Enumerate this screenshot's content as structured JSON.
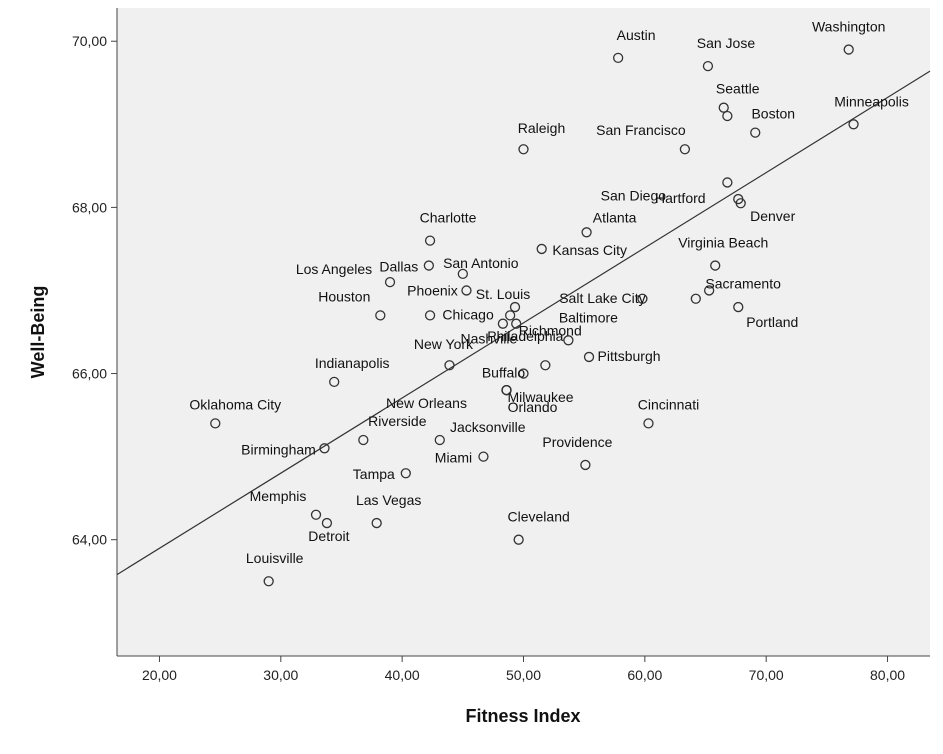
{
  "chart_data": {
    "type": "scatter",
    "xlabel": "Fitness Index",
    "ylabel": "Well-Being",
    "xlim": [
      16.5,
      83.5
    ],
    "ylim": [
      62.6,
      70.4
    ],
    "x_ticks": [
      20,
      30,
      40,
      50,
      60,
      70,
      80
    ],
    "x_tick_labels": [
      "20,00",
      "30,00",
      "40,00",
      "50,00",
      "60,00",
      "70,00",
      "80,00"
    ],
    "y_ticks": [
      64,
      66,
      68,
      70
    ],
    "y_tick_labels": [
      "64,00",
      "66,00",
      "68,00",
      "70,00"
    ],
    "fit_line": {
      "type": "linear",
      "from": [
        16.5,
        63.58
      ],
      "to": [
        83.5,
        69.64
      ]
    },
    "background_color": "#f0f0f0",
    "point_color": "#333333",
    "points": [
      {
        "label": "Washington",
        "x": 76.8,
        "y": 69.9
      },
      {
        "label": "Austin",
        "x": 57.8,
        "y": 69.8
      },
      {
        "label": "San Jose",
        "x": 65.2,
        "y": 69.7
      },
      {
        "label": "Seattle",
        "x": 66.5,
        "y": 69.2
      },
      {
        "label": "",
        "x": 66.8,
        "y": 69.1
      },
      {
        "label": "Boston",
        "x": 69.1,
        "y": 68.9
      },
      {
        "label": "Minneapolis",
        "x": 77.2,
        "y": 69.0
      },
      {
        "label": "Raleigh",
        "x": 50.0,
        "y": 68.7
      },
      {
        "label": "San Francisco",
        "x": 63.3,
        "y": 68.7
      },
      {
        "label": "San Diego",
        "x": 66.8,
        "y": 68.3
      },
      {
        "label": "Hartford",
        "x": 67.7,
        "y": 68.1
      },
      {
        "label": "Denver",
        "x": 67.9,
        "y": 68.05
      },
      {
        "label": "Atlanta",
        "x": 55.2,
        "y": 67.7
      },
      {
        "label": "Charlotte",
        "x": 42.3,
        "y": 67.6
      },
      {
        "label": "Kansas City",
        "x": 51.5,
        "y": 67.5
      },
      {
        "label": "Dallas",
        "x": 42.2,
        "y": 67.3
      },
      {
        "label": "San Antonio",
        "x": 45.0,
        "y": 67.2
      },
      {
        "label": "Virginia Beach",
        "x": 65.8,
        "y": 67.3
      },
      {
        "label": "Los Angeles",
        "x": 39.0,
        "y": 67.1
      },
      {
        "label": "Phoenix",
        "x": 45.3,
        "y": 67.0
      },
      {
        "label": "Sacramento",
        "x": 65.3,
        "y": 67.0
      },
      {
        "label": "Salt Lake City",
        "x": 59.8,
        "y": 66.9
      },
      {
        "label": "",
        "x": 64.2,
        "y": 66.9
      },
      {
        "label": "St. Louis",
        "x": 49.3,
        "y": 66.8
      },
      {
        "label": "Portland",
        "x": 67.7,
        "y": 66.8
      },
      {
        "label": "Houston",
        "x": 38.2,
        "y": 66.7
      },
      {
        "label": "Chicago",
        "x": 42.3,
        "y": 66.7
      },
      {
        "label": "",
        "x": 48.9,
        "y": 66.7
      },
      {
        "label": "Richmond",
        "x": 49.4,
        "y": 66.6
      },
      {
        "label": "Nashville",
        "x": 48.3,
        "y": 66.6
      },
      {
        "label": "Baltimore",
        "x": 53.7,
        "y": 66.4
      },
      {
        "label": "Pittsburgh",
        "x": 55.4,
        "y": 66.2
      },
      {
        "label": "New York",
        "x": 43.9,
        "y": 66.1
      },
      {
        "label": "Philadelphia",
        "x": 51.8,
        "y": 66.1
      },
      {
        "label": "Buffalo",
        "x": 50.0,
        "y": 66.0
      },
      {
        "label": "Indianapolis",
        "x": 34.4,
        "y": 65.9
      },
      {
        "label": "Milwaukee",
        "x": 48.6,
        "y": 65.8
      },
      {
        "label": "New Orleans",
        "x": 48.6,
        "y": 65.8
      },
      {
        "label": "Oklahoma City",
        "x": 24.6,
        "y": 65.4
      },
      {
        "label": "Cincinnati",
        "x": 60.3,
        "y": 65.4
      },
      {
        "label": "Orlando",
        "x": 48.6,
        "y": 65.8
      },
      {
        "label": "Riverside",
        "x": 36.8,
        "y": 65.2
      },
      {
        "label": "Jacksonville",
        "x": 43.1,
        "y": 65.2
      },
      {
        "label": "Birmingham",
        "x": 33.6,
        "y": 65.1
      },
      {
        "label": "Miami",
        "x": 46.7,
        "y": 65.0
      },
      {
        "label": "Providence",
        "x": 55.1,
        "y": 64.9
      },
      {
        "label": "Tampa",
        "x": 40.3,
        "y": 64.8
      },
      {
        "label": "Memphis",
        "x": 32.9,
        "y": 64.3
      },
      {
        "label": "Detroit",
        "x": 33.8,
        "y": 64.2
      },
      {
        "label": "Las Vegas",
        "x": 37.9,
        "y": 64.2
      },
      {
        "label": "Cleveland",
        "x": 49.6,
        "y": 64.0
      },
      {
        "label": "Louisville",
        "x": 29.0,
        "y": 63.5
      }
    ]
  }
}
